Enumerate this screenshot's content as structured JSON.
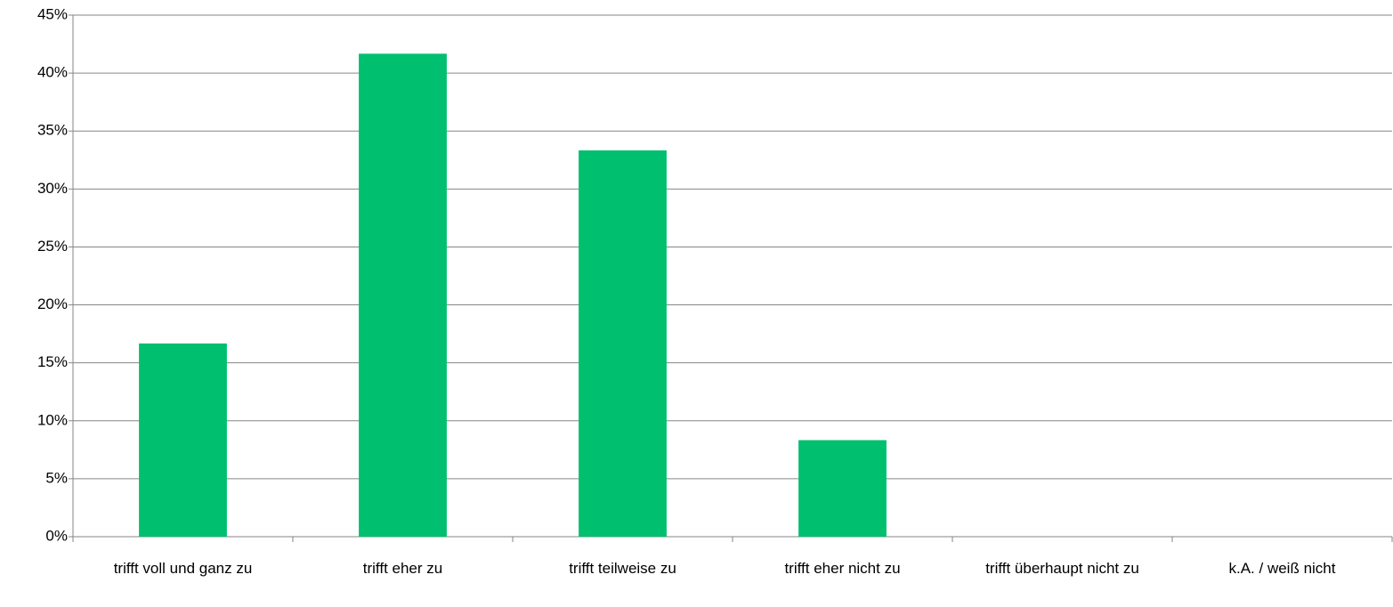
{
  "chart_data": {
    "type": "bar",
    "categories": [
      "trifft voll und ganz zu",
      "trifft eher zu",
      "trifft teilweise zu",
      "trifft eher nicht zu",
      "trifft überhaupt nicht zu",
      "k.A. / weiß nicht"
    ],
    "values": [
      16.67,
      41.67,
      33.33,
      8.33,
      0,
      0
    ],
    "color": "#00bf6f",
    "ylim": [
      0,
      45
    ],
    "yticks": [
      {
        "value": 0,
        "label": "0%"
      },
      {
        "value": 5,
        "label": "5%"
      },
      {
        "value": 10,
        "label": "10%"
      },
      {
        "value": 15,
        "label": "15%"
      },
      {
        "value": 20,
        "label": "20%"
      },
      {
        "value": 25,
        "label": "25%"
      },
      {
        "value": 30,
        "label": "30%"
      },
      {
        "value": 35,
        "label": "35%"
      },
      {
        "value": 40,
        "label": "40%"
      },
      {
        "value": 45,
        "label": "45%"
      }
    ],
    "grid": true
  }
}
